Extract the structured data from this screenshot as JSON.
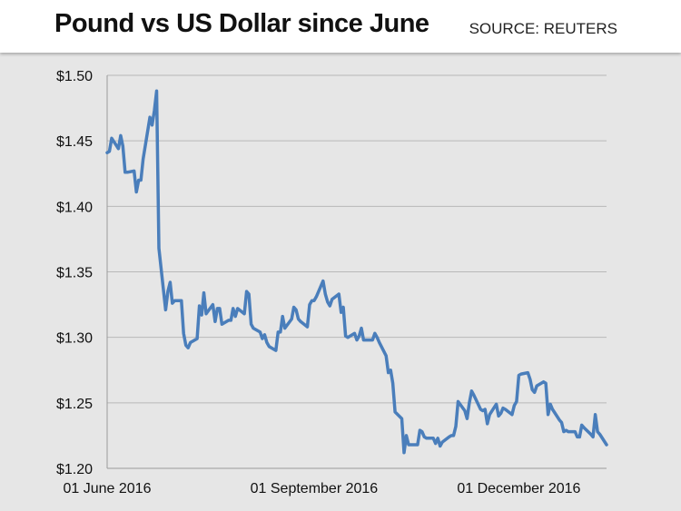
{
  "header": {
    "title": "Pound vs US Dollar since June",
    "source": "SOURCE: REUTERS"
  },
  "colors": {
    "line": "#4a7ebb",
    "grid": "#b8b8b8",
    "background": "#e6e6e6"
  },
  "chart_data": {
    "type": "line",
    "title": "Pound vs US Dollar since June",
    "xlabel": "",
    "ylabel": "",
    "ylim": [
      1.2,
      1.5
    ],
    "y_ticks": [
      "$1.20",
      "$1.25",
      "$1.30",
      "$1.35",
      "$1.40",
      "$1.45",
      "$1.50"
    ],
    "y_tick_values": [
      1.2,
      1.25,
      1.3,
      1.35,
      1.4,
      1.45,
      1.5
    ],
    "x_ticks": [
      "01 June 2016",
      "01 September 2016",
      "01 December 2016"
    ],
    "x_tick_dates": [
      "2016-06-01",
      "2016-09-01",
      "2016-12-01"
    ],
    "grid": true,
    "legend": "none",
    "series": [
      {
        "points": [
          [
            "2016-06-01",
            1.441
          ],
          [
            "2016-06-02",
            1.442
          ],
          [
            "2016-06-03",
            1.452
          ],
          [
            "2016-06-06",
            1.444
          ],
          [
            "2016-06-07",
            1.454
          ],
          [
            "2016-06-08",
            1.446
          ],
          [
            "2016-06-09",
            1.426
          ],
          [
            "2016-06-10",
            1.426
          ],
          [
            "2016-06-13",
            1.427
          ],
          [
            "2016-06-14",
            1.411
          ],
          [
            "2016-06-15",
            1.42
          ],
          [
            "2016-06-16",
            1.42
          ],
          [
            "2016-06-17",
            1.436
          ],
          [
            "2016-06-20",
            1.468
          ],
          [
            "2016-06-21",
            1.462
          ],
          [
            "2016-06-22",
            1.473
          ],
          [
            "2016-06-23",
            1.488
          ],
          [
            "2016-06-24",
            1.368
          ],
          [
            "2016-06-27",
            1.321
          ],
          [
            "2016-06-28",
            1.335
          ],
          [
            "2016-06-29",
            1.342
          ],
          [
            "2016-06-30",
            1.326
          ],
          [
            "2016-07-01",
            1.328
          ],
          [
            "2016-07-04",
            1.328
          ],
          [
            "2016-07-05",
            1.303
          ],
          [
            "2016-07-06",
            1.294
          ],
          [
            "2016-07-07",
            1.292
          ],
          [
            "2016-07-08",
            1.296
          ],
          [
            "2016-07-11",
            1.299
          ],
          [
            "2016-07-12",
            1.324
          ],
          [
            "2016-07-13",
            1.317
          ],
          [
            "2016-07-14",
            1.334
          ],
          [
            "2016-07-15",
            1.318
          ],
          [
            "2016-07-18",
            1.325
          ],
          [
            "2016-07-19",
            1.312
          ],
          [
            "2016-07-20",
            1.322
          ],
          [
            "2016-07-21",
            1.322
          ],
          [
            "2016-07-22",
            1.31
          ],
          [
            "2016-07-25",
            1.313
          ],
          [
            "2016-07-26",
            1.313
          ],
          [
            "2016-07-27",
            1.322
          ],
          [
            "2016-07-28",
            1.316
          ],
          [
            "2016-07-29",
            1.322
          ],
          [
            "2016-08-01",
            1.318
          ],
          [
            "2016-08-02",
            1.335
          ],
          [
            "2016-08-03",
            1.333
          ],
          [
            "2016-08-04",
            1.31
          ],
          [
            "2016-08-05",
            1.307
          ],
          [
            "2016-08-08",
            1.304
          ],
          [
            "2016-08-09",
            1.299
          ],
          [
            "2016-08-10",
            1.302
          ],
          [
            "2016-08-11",
            1.296
          ],
          [
            "2016-08-12",
            1.293
          ],
          [
            "2016-08-15",
            1.29
          ],
          [
            "2016-08-16",
            1.304
          ],
          [
            "2016-08-17",
            1.304
          ],
          [
            "2016-08-18",
            1.316
          ],
          [
            "2016-08-19",
            1.307
          ],
          [
            "2016-08-22",
            1.314
          ],
          [
            "2016-08-23",
            1.323
          ],
          [
            "2016-08-24",
            1.321
          ],
          [
            "2016-08-25",
            1.314
          ],
          [
            "2016-08-26",
            1.312
          ],
          [
            "2016-08-29",
            1.308
          ],
          [
            "2016-08-30",
            1.325
          ],
          [
            "2016-08-31",
            1.328
          ],
          [
            "2016-09-01",
            1.328
          ],
          [
            "2016-09-02",
            1.331
          ],
          [
            "2016-09-05",
            1.343
          ],
          [
            "2016-09-06",
            1.333
          ],
          [
            "2016-09-07",
            1.327
          ],
          [
            "2016-09-08",
            1.324
          ],
          [
            "2016-09-09",
            1.329
          ],
          [
            "2016-09-12",
            1.333
          ],
          [
            "2016-09-13",
            1.319
          ],
          [
            "2016-09-14",
            1.323
          ],
          [
            "2016-09-15",
            1.301
          ],
          [
            "2016-09-16",
            1.3
          ],
          [
            "2016-09-19",
            1.303
          ],
          [
            "2016-09-20",
            1.298
          ],
          [
            "2016-09-21",
            1.301
          ],
          [
            "2016-09-22",
            1.307
          ],
          [
            "2016-09-23",
            1.298
          ],
          [
            "2016-09-26",
            1.298
          ],
          [
            "2016-09-27",
            1.298
          ],
          [
            "2016-09-28",
            1.303
          ],
          [
            "2016-09-29",
            1.3
          ],
          [
            "2016-09-30",
            1.296
          ],
          [
            "2016-10-03",
            1.286
          ],
          [
            "2016-10-04",
            1.273
          ],
          [
            "2016-10-05",
            1.275
          ],
          [
            "2016-10-06",
            1.265
          ],
          [
            "2016-10-07",
            1.243
          ],
          [
            "2016-10-10",
            1.238
          ],
          [
            "2016-10-11",
            1.212
          ],
          [
            "2016-10-12",
            1.225
          ],
          [
            "2016-10-13",
            1.218
          ],
          [
            "2016-10-14",
            1.218
          ],
          [
            "2016-10-17",
            1.218
          ],
          [
            "2016-10-18",
            1.229
          ],
          [
            "2016-10-19",
            1.228
          ],
          [
            "2016-10-20",
            1.224
          ],
          [
            "2016-10-21",
            1.223
          ],
          [
            "2016-10-24",
            1.223
          ],
          [
            "2016-10-25",
            1.219
          ],
          [
            "2016-10-26",
            1.223
          ],
          [
            "2016-10-27",
            1.217
          ],
          [
            "2016-10-28",
            1.22
          ],
          [
            "2016-10-31",
            1.224
          ],
          [
            "2016-11-01",
            1.225
          ],
          [
            "2016-11-02",
            1.225
          ],
          [
            "2016-11-03",
            1.232
          ],
          [
            "2016-11-04",
            1.251
          ],
          [
            "2016-11-07",
            1.244
          ],
          [
            "2016-11-08",
            1.238
          ],
          [
            "2016-11-09",
            1.25
          ],
          [
            "2016-11-10",
            1.259
          ],
          [
            "2016-11-11",
            1.256
          ],
          [
            "2016-11-14",
            1.245
          ],
          [
            "2016-11-15",
            1.244
          ],
          [
            "2016-11-16",
            1.245
          ],
          [
            "2016-11-17",
            1.234
          ],
          [
            "2016-11-18",
            1.241
          ],
          [
            "2016-11-21",
            1.249
          ],
          [
            "2016-11-22",
            1.24
          ],
          [
            "2016-11-23",
            1.242
          ],
          [
            "2016-11-24",
            1.246
          ],
          [
            "2016-11-25",
            1.245
          ],
          [
            "2016-11-28",
            1.241
          ],
          [
            "2016-11-29",
            1.248
          ],
          [
            "2016-11-30",
            1.251
          ],
          [
            "2016-12-01",
            1.271
          ],
          [
            "2016-12-02",
            1.272
          ],
          [
            "2016-12-05",
            1.273
          ],
          [
            "2016-12-06",
            1.268
          ],
          [
            "2016-12-07",
            1.26
          ],
          [
            "2016-12-08",
            1.258
          ],
          [
            "2016-12-09",
            1.263
          ],
          [
            "2016-12-12",
            1.266
          ],
          [
            "2016-12-13",
            1.265
          ],
          [
            "2016-12-14",
            1.241
          ],
          [
            "2016-12-15",
            1.249
          ],
          [
            "2016-12-16",
            1.245
          ],
          [
            "2016-12-19",
            1.237
          ],
          [
            "2016-12-20",
            1.235
          ],
          [
            "2016-12-21",
            1.228
          ],
          [
            "2016-12-22",
            1.229
          ],
          [
            "2016-12-23",
            1.228
          ],
          [
            "2016-12-26",
            1.228
          ],
          [
            "2016-12-27",
            1.224
          ],
          [
            "2016-12-28",
            1.224
          ],
          [
            "2016-12-29",
            1.233
          ],
          [
            "2016-12-30",
            1.231
          ],
          [
            "2017-01-02",
            1.226
          ],
          [
            "2017-01-03",
            1.224
          ],
          [
            "2017-01-04",
            1.241
          ],
          [
            "2017-01-05",
            1.228
          ],
          [
            "2017-01-06",
            1.226
          ],
          [
            "2017-01-09",
            1.218
          ]
        ]
      }
    ]
  }
}
